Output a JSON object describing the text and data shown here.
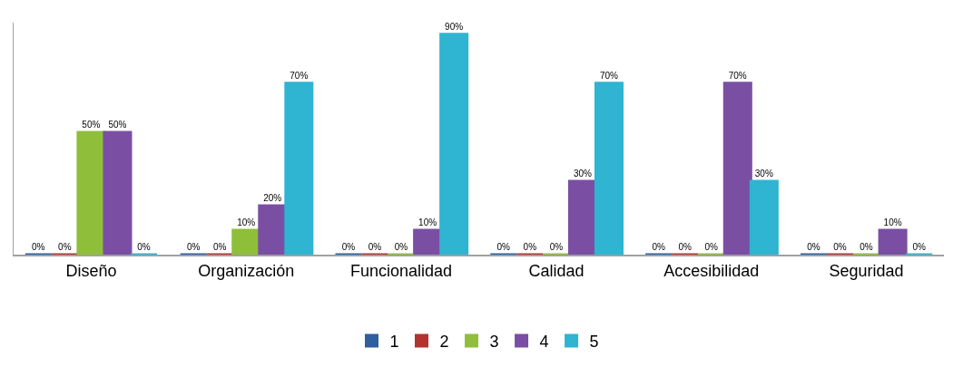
{
  "chart_data": {
    "type": "bar",
    "categories": [
      "Diseño",
      "Organización",
      "Funcionalidad",
      "Calidad",
      "Accesibilidad",
      "Seguridad"
    ],
    "series": [
      {
        "name": "1",
        "color": "#2f5f9f",
        "values": [
          0,
          0,
          0,
          0,
          0,
          0
        ],
        "value_labels": [
          "0%",
          "0%",
          "0%",
          "0%",
          "0%",
          "0%"
        ]
      },
      {
        "name": "2",
        "color": "#b3342f",
        "values": [
          0,
          0,
          0,
          0,
          0,
          0
        ],
        "value_labels": [
          "0%",
          "0%",
          "0%",
          "0%",
          "0%",
          "0%"
        ]
      },
      {
        "name": "3",
        "color": "#8fbf3a",
        "values": [
          50,
          10,
          0,
          0,
          0,
          0
        ],
        "value_labels": [
          "50%",
          "10%",
          "0%",
          "0%",
          "0%",
          "0%"
        ]
      },
      {
        "name": "4",
        "color": "#7a4fa3",
        "values": [
          50,
          20,
          10,
          30,
          70,
          10
        ],
        "value_labels": [
          "50%",
          "20%",
          "10%",
          "30%",
          "70%",
          "10%"
        ]
      },
      {
        "name": "5",
        "color": "#2fb4d2",
        "values": [
          0,
          70,
          90,
          70,
          30,
          0
        ],
        "value_labels": [
          "0%",
          "70%",
          "90%",
          "70%",
          "30%",
          "0%"
        ]
      }
    ],
    "legend": "bottom"
  }
}
